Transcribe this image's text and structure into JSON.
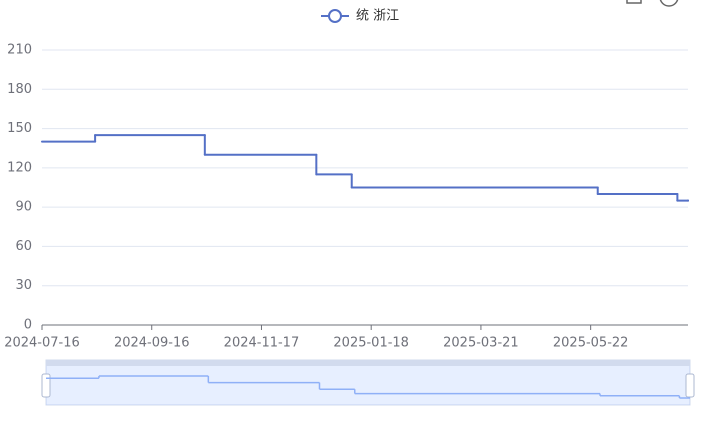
{
  "chart_data": {
    "type": "step-line",
    "series": [
      {
        "name": "统 浙江",
        "color": "#5470c6",
        "x": [
          "2024-07-16",
          "2024-08-15",
          "2024-10-16",
          "2024-12-18",
          "2025-01-07",
          "2025-05-26",
          "2025-07-10",
          "2025-07-16"
        ],
        "values": [
          140,
          145,
          130,
          115,
          105,
          100,
          95,
          95
        ]
      }
    ],
    "xlim": [
      "2024-07-16",
      "2025-07-16"
    ],
    "xticks": [
      "2024-07-16",
      "2024-09-16",
      "2024-11-17",
      "2025-01-18",
      "2025-03-21",
      "2025-05-22"
    ],
    "ylim": [
      0,
      210
    ],
    "yticks": [
      0,
      30,
      60,
      90,
      120,
      150,
      180,
      210
    ],
    "grid": true
  }
}
